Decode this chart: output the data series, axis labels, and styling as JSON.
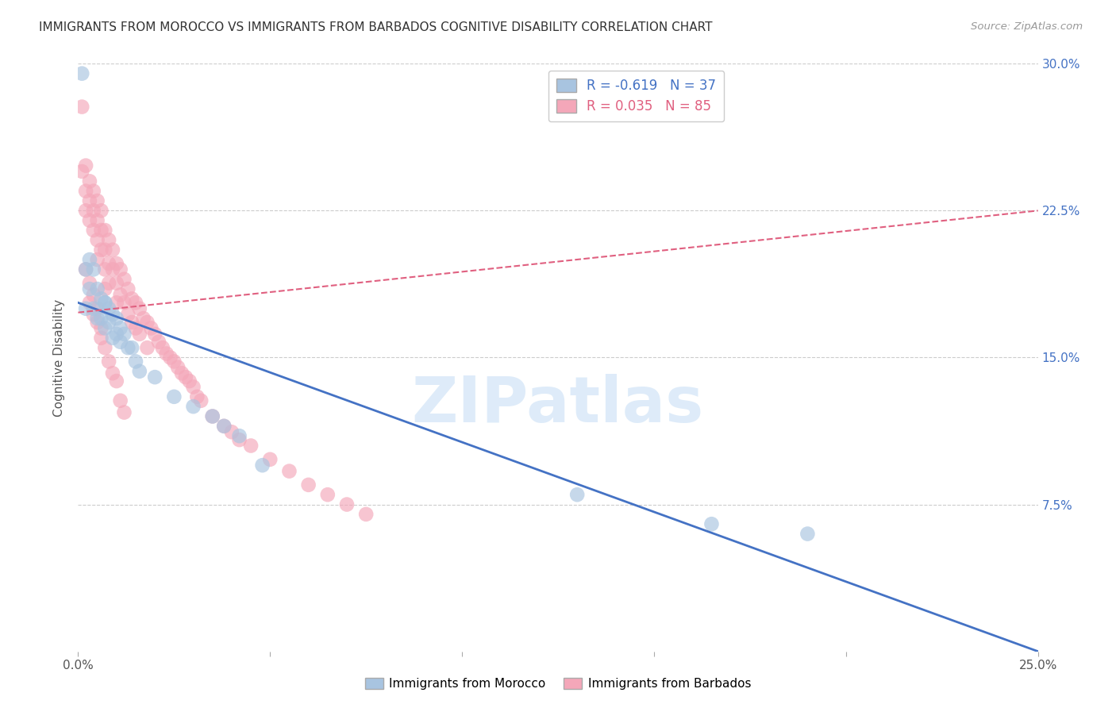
{
  "title": "IMMIGRANTS FROM MOROCCO VS IMMIGRANTS FROM BARBADOS COGNITIVE DISABILITY CORRELATION CHART",
  "source": "Source: ZipAtlas.com",
  "ylabel": "Cognitive Disability",
  "morocco_R": -0.619,
  "morocco_N": 37,
  "barbados_R": 0.035,
  "barbados_N": 85,
  "morocco_color": "#a8c4e0",
  "barbados_color": "#f4a7b9",
  "morocco_line_color": "#4472c4",
  "barbados_line_color": "#e06080",
  "legend_label_morocco": "Immigrants from Morocco",
  "legend_label_barbados": "Immigrants from Barbados",
  "xlim": [
    0.0,
    0.25
  ],
  "ylim": [
    0.0,
    0.3
  ],
  "ytick_positions": [
    0.075,
    0.15,
    0.225,
    0.3
  ],
  "ytick_labels": [
    "7.5%",
    "15.0%",
    "22.5%",
    "30.0%"
  ],
  "morocco_points_x": [
    0.001,
    0.002,
    0.002,
    0.003,
    0.003,
    0.004,
    0.004,
    0.005,
    0.005,
    0.006,
    0.006,
    0.007,
    0.007,
    0.008,
    0.008,
    0.009,
    0.009,
    0.01,
    0.01,
    0.011,
    0.011,
    0.012,
    0.013,
    0.014,
    0.015,
    0.016,
    0.02,
    0.025,
    0.03,
    0.035,
    0.038,
    0.042,
    0.048,
    0.13,
    0.165,
    0.19,
    0.007
  ],
  "morocco_points_y": [
    0.295,
    0.195,
    0.175,
    0.2,
    0.185,
    0.195,
    0.175,
    0.185,
    0.17,
    0.18,
    0.17,
    0.178,
    0.165,
    0.175,
    0.168,
    0.172,
    0.16,
    0.17,
    0.162,
    0.165,
    0.158,
    0.162,
    0.155,
    0.155,
    0.148,
    0.143,
    0.14,
    0.13,
    0.125,
    0.12,
    0.115,
    0.11,
    0.095,
    0.08,
    0.065,
    0.06,
    0.178
  ],
  "barbados_points_x": [
    0.001,
    0.001,
    0.002,
    0.002,
    0.002,
    0.003,
    0.003,
    0.003,
    0.004,
    0.004,
    0.004,
    0.005,
    0.005,
    0.005,
    0.005,
    0.006,
    0.006,
    0.006,
    0.007,
    0.007,
    0.007,
    0.007,
    0.008,
    0.008,
    0.008,
    0.009,
    0.009,
    0.01,
    0.01,
    0.01,
    0.011,
    0.011,
    0.012,
    0.012,
    0.013,
    0.013,
    0.014,
    0.014,
    0.015,
    0.015,
    0.016,
    0.016,
    0.017,
    0.018,
    0.018,
    0.019,
    0.02,
    0.021,
    0.022,
    0.023,
    0.024,
    0.025,
    0.026,
    0.027,
    0.028,
    0.029,
    0.03,
    0.031,
    0.032,
    0.035,
    0.038,
    0.04,
    0.042,
    0.045,
    0.05,
    0.055,
    0.06,
    0.065,
    0.07,
    0.075,
    0.003,
    0.004,
    0.005,
    0.006,
    0.007,
    0.008,
    0.009,
    0.01,
    0.011,
    0.012,
    0.002,
    0.003,
    0.004,
    0.005,
    0.006
  ],
  "barbados_points_y": [
    0.278,
    0.245,
    0.248,
    0.235,
    0.225,
    0.24,
    0.23,
    0.22,
    0.235,
    0.225,
    0.215,
    0.23,
    0.22,
    0.21,
    0.2,
    0.225,
    0.215,
    0.205,
    0.215,
    0.205,
    0.195,
    0.185,
    0.21,
    0.198,
    0.188,
    0.205,
    0.195,
    0.198,
    0.188,
    0.178,
    0.195,
    0.182,
    0.19,
    0.178,
    0.185,
    0.172,
    0.18,
    0.168,
    0.178,
    0.165,
    0.175,
    0.162,
    0.17,
    0.168,
    0.155,
    0.165,
    0.162,
    0.158,
    0.155,
    0.152,
    0.15,
    0.148,
    0.145,
    0.142,
    0.14,
    0.138,
    0.135,
    0.13,
    0.128,
    0.12,
    0.115,
    0.112,
    0.108,
    0.105,
    0.098,
    0.092,
    0.085,
    0.08,
    0.075,
    0.07,
    0.178,
    0.172,
    0.168,
    0.16,
    0.155,
    0.148,
    0.142,
    0.138,
    0.128,
    0.122,
    0.195,
    0.188,
    0.182,
    0.175,
    0.165
  ],
  "morocco_line_x": [
    0.0,
    0.25
  ],
  "morocco_line_y": [
    0.178,
    0.0
  ],
  "barbados_line_x": [
    0.0,
    0.25
  ],
  "barbados_line_y": [
    0.173,
    0.225
  ],
  "watermark_text": "ZIPatlas",
  "watermark_color": "#c8dff5",
  "background_color": "#ffffff",
  "grid_color": "#cccccc"
}
